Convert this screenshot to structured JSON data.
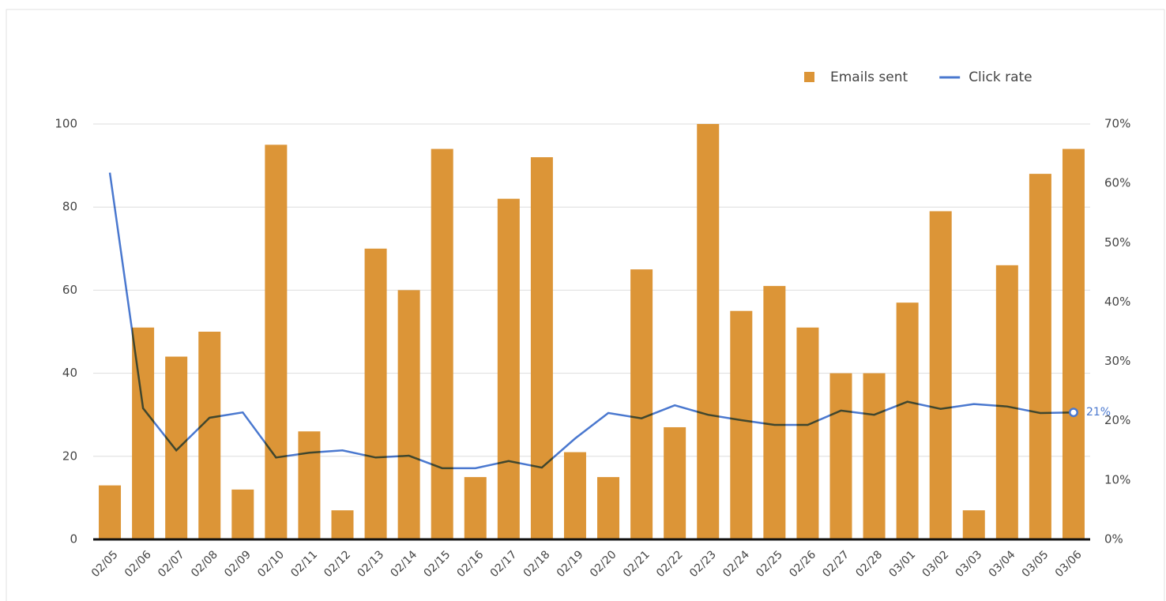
{
  "chart_data": {
    "type": "bar_line",
    "categories": [
      "02/05",
      "02/06",
      "02/07",
      "02/08",
      "02/09",
      "02/10",
      "02/11",
      "02/12",
      "02/13",
      "02/14",
      "02/15",
      "02/16",
      "02/17",
      "02/18",
      "02/19",
      "02/20",
      "02/21",
      "02/22",
      "02/23",
      "02/24",
      "02/25",
      "02/26",
      "02/27",
      "02/28",
      "03/01",
      "03/02",
      "03/03",
      "03/04",
      "03/05",
      "03/06"
    ],
    "series": [
      {
        "name": "Emails sent",
        "type": "bar",
        "color": "#dc9537",
        "axis": "y",
        "values": [
          13,
          51,
          44,
          50,
          12,
          95,
          26,
          7,
          70,
          60,
          94,
          15,
          82,
          92,
          21,
          15,
          65,
          27,
          100,
          55,
          61,
          51,
          40,
          40,
          57,
          79,
          7,
          66,
          88,
          94
        ]
      },
      {
        "name": "Click rate",
        "type": "line",
        "color": "#4a78cf",
        "axis": "y2",
        "values": [
          61.8,
          22.1,
          15,
          20.5,
          21.4,
          13.8,
          14.6,
          15,
          13.8,
          14.1,
          12,
          12,
          13.2,
          12.1,
          17,
          21.3,
          20.4,
          22.6,
          21,
          20.1,
          19.3,
          19.3,
          21.7,
          21,
          23.2,
          22,
          22.8,
          22.4,
          21.3,
          21.4
        ],
        "value_labels": [
          null,
          null,
          null,
          null,
          null,
          null,
          null,
          null,
          null,
          null,
          null,
          null,
          null,
          null,
          null,
          null,
          null,
          null,
          null,
          null,
          null,
          null,
          null,
          null,
          null,
          null,
          null,
          null,
          null,
          "21%"
        ]
      }
    ],
    "ylim": [
      0,
      100
    ],
    "yticks": [
      0,
      20,
      40,
      60,
      80,
      100
    ],
    "y2lim": [
      0,
      70
    ],
    "y2ticks": [
      {
        "value": 0,
        "label": "0%"
      },
      {
        "value": 10,
        "label": "10%"
      },
      {
        "value": 20,
        "label": "20%"
      },
      {
        "value": 30,
        "label": "30%"
      },
      {
        "value": 40,
        "label": "40%"
      },
      {
        "value": 50,
        "label": "50%"
      },
      {
        "value": 60,
        "label": "60%"
      },
      {
        "value": 70,
        "label": "70%"
      }
    ],
    "grid": true,
    "legend": "top-right"
  }
}
